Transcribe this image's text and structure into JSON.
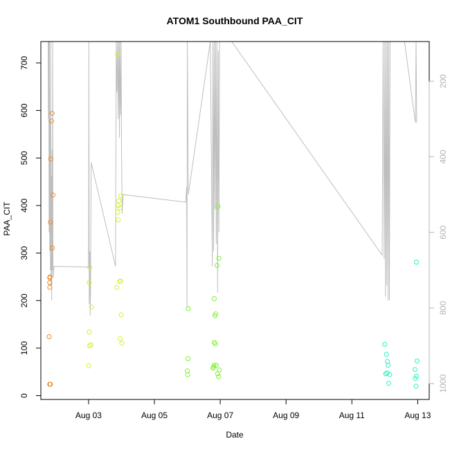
{
  "chart_data": {
    "type": "scatter",
    "title": "ATOM1 Southbound PAA_CIT",
    "xlabel": "Date",
    "ylabel": "PAA_CIT",
    "x_ticks": [
      "Aug 03",
      "Aug 05",
      "Aug 07",
      "Aug 09",
      "Aug 11",
      "Aug 13"
    ],
    "xlim_days": [
      1.55,
      13.35
    ],
    "ylim": [
      -8,
      745
    ],
    "y_ticks": [
      0,
      100,
      200,
      300,
      400,
      500,
      600,
      700
    ],
    "y2_ticks": [
      200,
      400,
      600,
      800,
      1000
    ],
    "y2lim_reversed": [
      1042,
      95
    ],
    "grid": false,
    "points": [
      {
        "day": 1.8,
        "y": 124,
        "color": "#f08a24"
      },
      {
        "day": 1.82,
        "y": 228,
        "color": "#f08a24"
      },
      {
        "day": 1.82,
        "y": 238,
        "color": "#f08a24"
      },
      {
        "day": 1.82,
        "y": 248,
        "color": "#f08a24"
      },
      {
        "day": 1.83,
        "y": 250,
        "color": "#f08a24"
      },
      {
        "day": 1.82,
        "y": 24,
        "color": "#f08a24"
      },
      {
        "day": 1.84,
        "y": 24,
        "color": "#f08a24"
      },
      {
        "day": 1.84,
        "y": 365,
        "color": "#f08a24"
      },
      {
        "day": 1.85,
        "y": 498,
        "color": "#f08a24"
      },
      {
        "day": 1.87,
        "y": 578,
        "color": "#f08a24"
      },
      {
        "day": 1.89,
        "y": 594,
        "color": "#f08a24"
      },
      {
        "day": 1.9,
        "y": 311,
        "color": "#f08a24"
      },
      {
        "day": 1.92,
        "y": 422,
        "color": "#f08a24"
      },
      {
        "day": 3.0,
        "y": 63,
        "color": "#d6f02a"
      },
      {
        "day": 3.02,
        "y": 134,
        "color": "#d6f02a"
      },
      {
        "day": 3.03,
        "y": 105,
        "color": "#d6f02a"
      },
      {
        "day": 3.07,
        "y": 107,
        "color": "#d6f02a"
      },
      {
        "day": 3.02,
        "y": 238,
        "color": "#d6f02a"
      },
      {
        "day": 3.03,
        "y": 270,
        "color": "#d6f02a"
      },
      {
        "day": 3.09,
        "y": 186,
        "color": "#d6f02a"
      },
      {
        "day": 3.86,
        "y": 228,
        "color": "#d6f02a"
      },
      {
        "day": 3.88,
        "y": 386,
        "color": "#d6f02a"
      },
      {
        "day": 3.88,
        "y": 718,
        "color": "#d6f02a"
      },
      {
        "day": 3.9,
        "y": 370,
        "color": "#d6f02a"
      },
      {
        "day": 3.9,
        "y": 400,
        "color": "#d6f02a"
      },
      {
        "day": 3.92,
        "y": 410,
        "color": "#d6f02a"
      },
      {
        "day": 3.94,
        "y": 240,
        "color": "#d6f02a"
      },
      {
        "day": 3.95,
        "y": 395,
        "color": "#d6f02a"
      },
      {
        "day": 3.96,
        "y": 120,
        "color": "#d6f02a"
      },
      {
        "day": 3.97,
        "y": 241,
        "color": "#d6f02a"
      },
      {
        "day": 3.98,
        "y": 420,
        "color": "#d6f02a"
      },
      {
        "day": 3.99,
        "y": 170,
        "color": "#d6f02a"
      },
      {
        "day": 4.01,
        "y": 110,
        "color": "#d6f02a"
      },
      {
        "day": 6.0,
        "y": 52,
        "color": "#7ef02c"
      },
      {
        "day": 6.01,
        "y": 44,
        "color": "#7ef02c"
      },
      {
        "day": 6.02,
        "y": 78,
        "color": "#7ef02c"
      },
      {
        "day": 6.03,
        "y": 183,
        "color": "#7ef02c"
      },
      {
        "day": 6.78,
        "y": 58,
        "color": "#7ef02c"
      },
      {
        "day": 6.8,
        "y": 60,
        "color": "#7ef02c"
      },
      {
        "day": 6.81,
        "y": 64,
        "color": "#7ef02c"
      },
      {
        "day": 6.82,
        "y": 112,
        "color": "#7ef02c"
      },
      {
        "day": 6.82,
        "y": 204,
        "color": "#7ef02c"
      },
      {
        "day": 6.84,
        "y": 168,
        "color": "#7ef02c"
      },
      {
        "day": 6.85,
        "y": 109,
        "color": "#7ef02c"
      },
      {
        "day": 6.86,
        "y": 172,
        "color": "#7ef02c"
      },
      {
        "day": 6.88,
        "y": 64,
        "color": "#7ef02c"
      },
      {
        "day": 6.9,
        "y": 274,
        "color": "#7ef02c"
      },
      {
        "day": 6.92,
        "y": 46,
        "color": "#7ef02c"
      },
      {
        "day": 6.93,
        "y": 398,
        "color": "#7ef02c"
      },
      {
        "day": 6.95,
        "y": 40,
        "color": "#7ef02c"
      },
      {
        "day": 6.96,
        "y": 289,
        "color": "#7ef02c"
      },
      {
        "day": 6.97,
        "y": 54,
        "color": "#7ef02c"
      },
      {
        "day": 12.0,
        "y": 108,
        "color": "#28f0c0"
      },
      {
        "day": 12.03,
        "y": 46,
        "color": "#28f0c0"
      },
      {
        "day": 12.05,
        "y": 87,
        "color": "#28f0c0"
      },
      {
        "day": 12.07,
        "y": 48,
        "color": "#28f0c0"
      },
      {
        "day": 12.08,
        "y": 72,
        "color": "#28f0c0"
      },
      {
        "day": 12.1,
        "y": 64,
        "color": "#28f0c0"
      },
      {
        "day": 12.12,
        "y": 26,
        "color": "#28f0c0"
      },
      {
        "day": 12.15,
        "y": 44,
        "color": "#28f0c0"
      },
      {
        "day": 12.92,
        "y": 55,
        "color": "#28f0c0"
      },
      {
        "day": 12.93,
        "y": 36,
        "color": "#28f0c0"
      },
      {
        "day": 12.95,
        "y": 20,
        "color": "#28f0c0"
      },
      {
        "day": 12.96,
        "y": 41,
        "color": "#28f0c0"
      },
      {
        "day": 12.96,
        "y": 281,
        "color": "#28f0c0"
      },
      {
        "day": 12.98,
        "y": 73,
        "color": "#28f0c0"
      }
    ],
    "line_series": {
      "color": "#bebebe",
      "axis": "right",
      "points": [
        [
          1.75,
          85
        ],
        [
          1.77,
          85
        ],
        [
          1.78,
          300
        ],
        [
          1.79,
          85
        ],
        [
          1.8,
          600
        ],
        [
          1.81,
          85
        ],
        [
          1.82,
          650
        ],
        [
          1.83,
          300
        ],
        [
          1.84,
          700
        ],
        [
          1.85,
          85
        ],
        [
          1.86,
          740
        ],
        [
          1.87,
          450
        ],
        [
          1.88,
          780
        ],
        [
          1.89,
          380
        ],
        [
          1.9,
          700
        ],
        [
          1.91,
          85
        ],
        [
          1.92,
          720
        ],
        [
          1.95,
          690
        ],
        [
          3.0,
          692
        ],
        [
          3.01,
          85
        ],
        [
          3.02,
          790
        ],
        [
          3.04,
          650
        ],
        [
          3.05,
          820
        ],
        [
          3.06,
          750
        ],
        [
          3.08,
          415
        ],
        [
          3.82,
          690
        ],
        [
          3.84,
          85
        ],
        [
          3.86,
          230
        ],
        [
          3.88,
          85
        ],
        [
          3.9,
          300
        ],
        [
          3.92,
          85
        ],
        [
          3.94,
          350
        ],
        [
          3.95,
          85
        ],
        [
          3.97,
          290
        ],
        [
          3.98,
          220
        ],
        [
          3.99,
          85
        ],
        [
          4.0,
          360
        ],
        [
          4.02,
          550
        ],
        [
          4.05,
          500
        ],
        [
          5.95,
          520
        ],
        [
          5.98,
          480
        ],
        [
          5.99,
          800
        ],
        [
          6.0,
          85
        ],
        [
          6.03,
          500
        ],
        [
          6.7,
          85
        ],
        [
          6.76,
          690
        ],
        [
          6.77,
          350
        ],
        [
          6.78,
          85
        ],
        [
          6.8,
          650
        ],
        [
          6.82,
          85
        ],
        [
          6.84,
          540
        ],
        [
          6.86,
          85
        ],
        [
          6.88,
          630
        ],
        [
          6.9,
          85
        ],
        [
          6.92,
          760
        ],
        [
          6.94,
          120
        ],
        [
          6.96,
          600
        ],
        [
          6.98,
          85
        ],
        [
          7.05,
          85
        ],
        [
          7.35,
          85
        ],
        [
          11.92,
          660
        ],
        [
          11.95,
          85
        ],
        [
          11.98,
          670
        ],
        [
          12.0,
          85
        ],
        [
          12.02,
          770
        ],
        [
          12.04,
          85
        ],
        [
          12.06,
          740
        ],
        [
          12.08,
          85
        ],
        [
          12.1,
          780
        ],
        [
          12.12,
          85
        ],
        [
          12.14,
          780
        ],
        [
          12.16,
          85
        ],
        [
          12.6,
          85
        ],
        [
          12.93,
          310
        ],
        [
          12.95,
          85
        ],
        [
          12.97,
          310
        ]
      ]
    }
  }
}
